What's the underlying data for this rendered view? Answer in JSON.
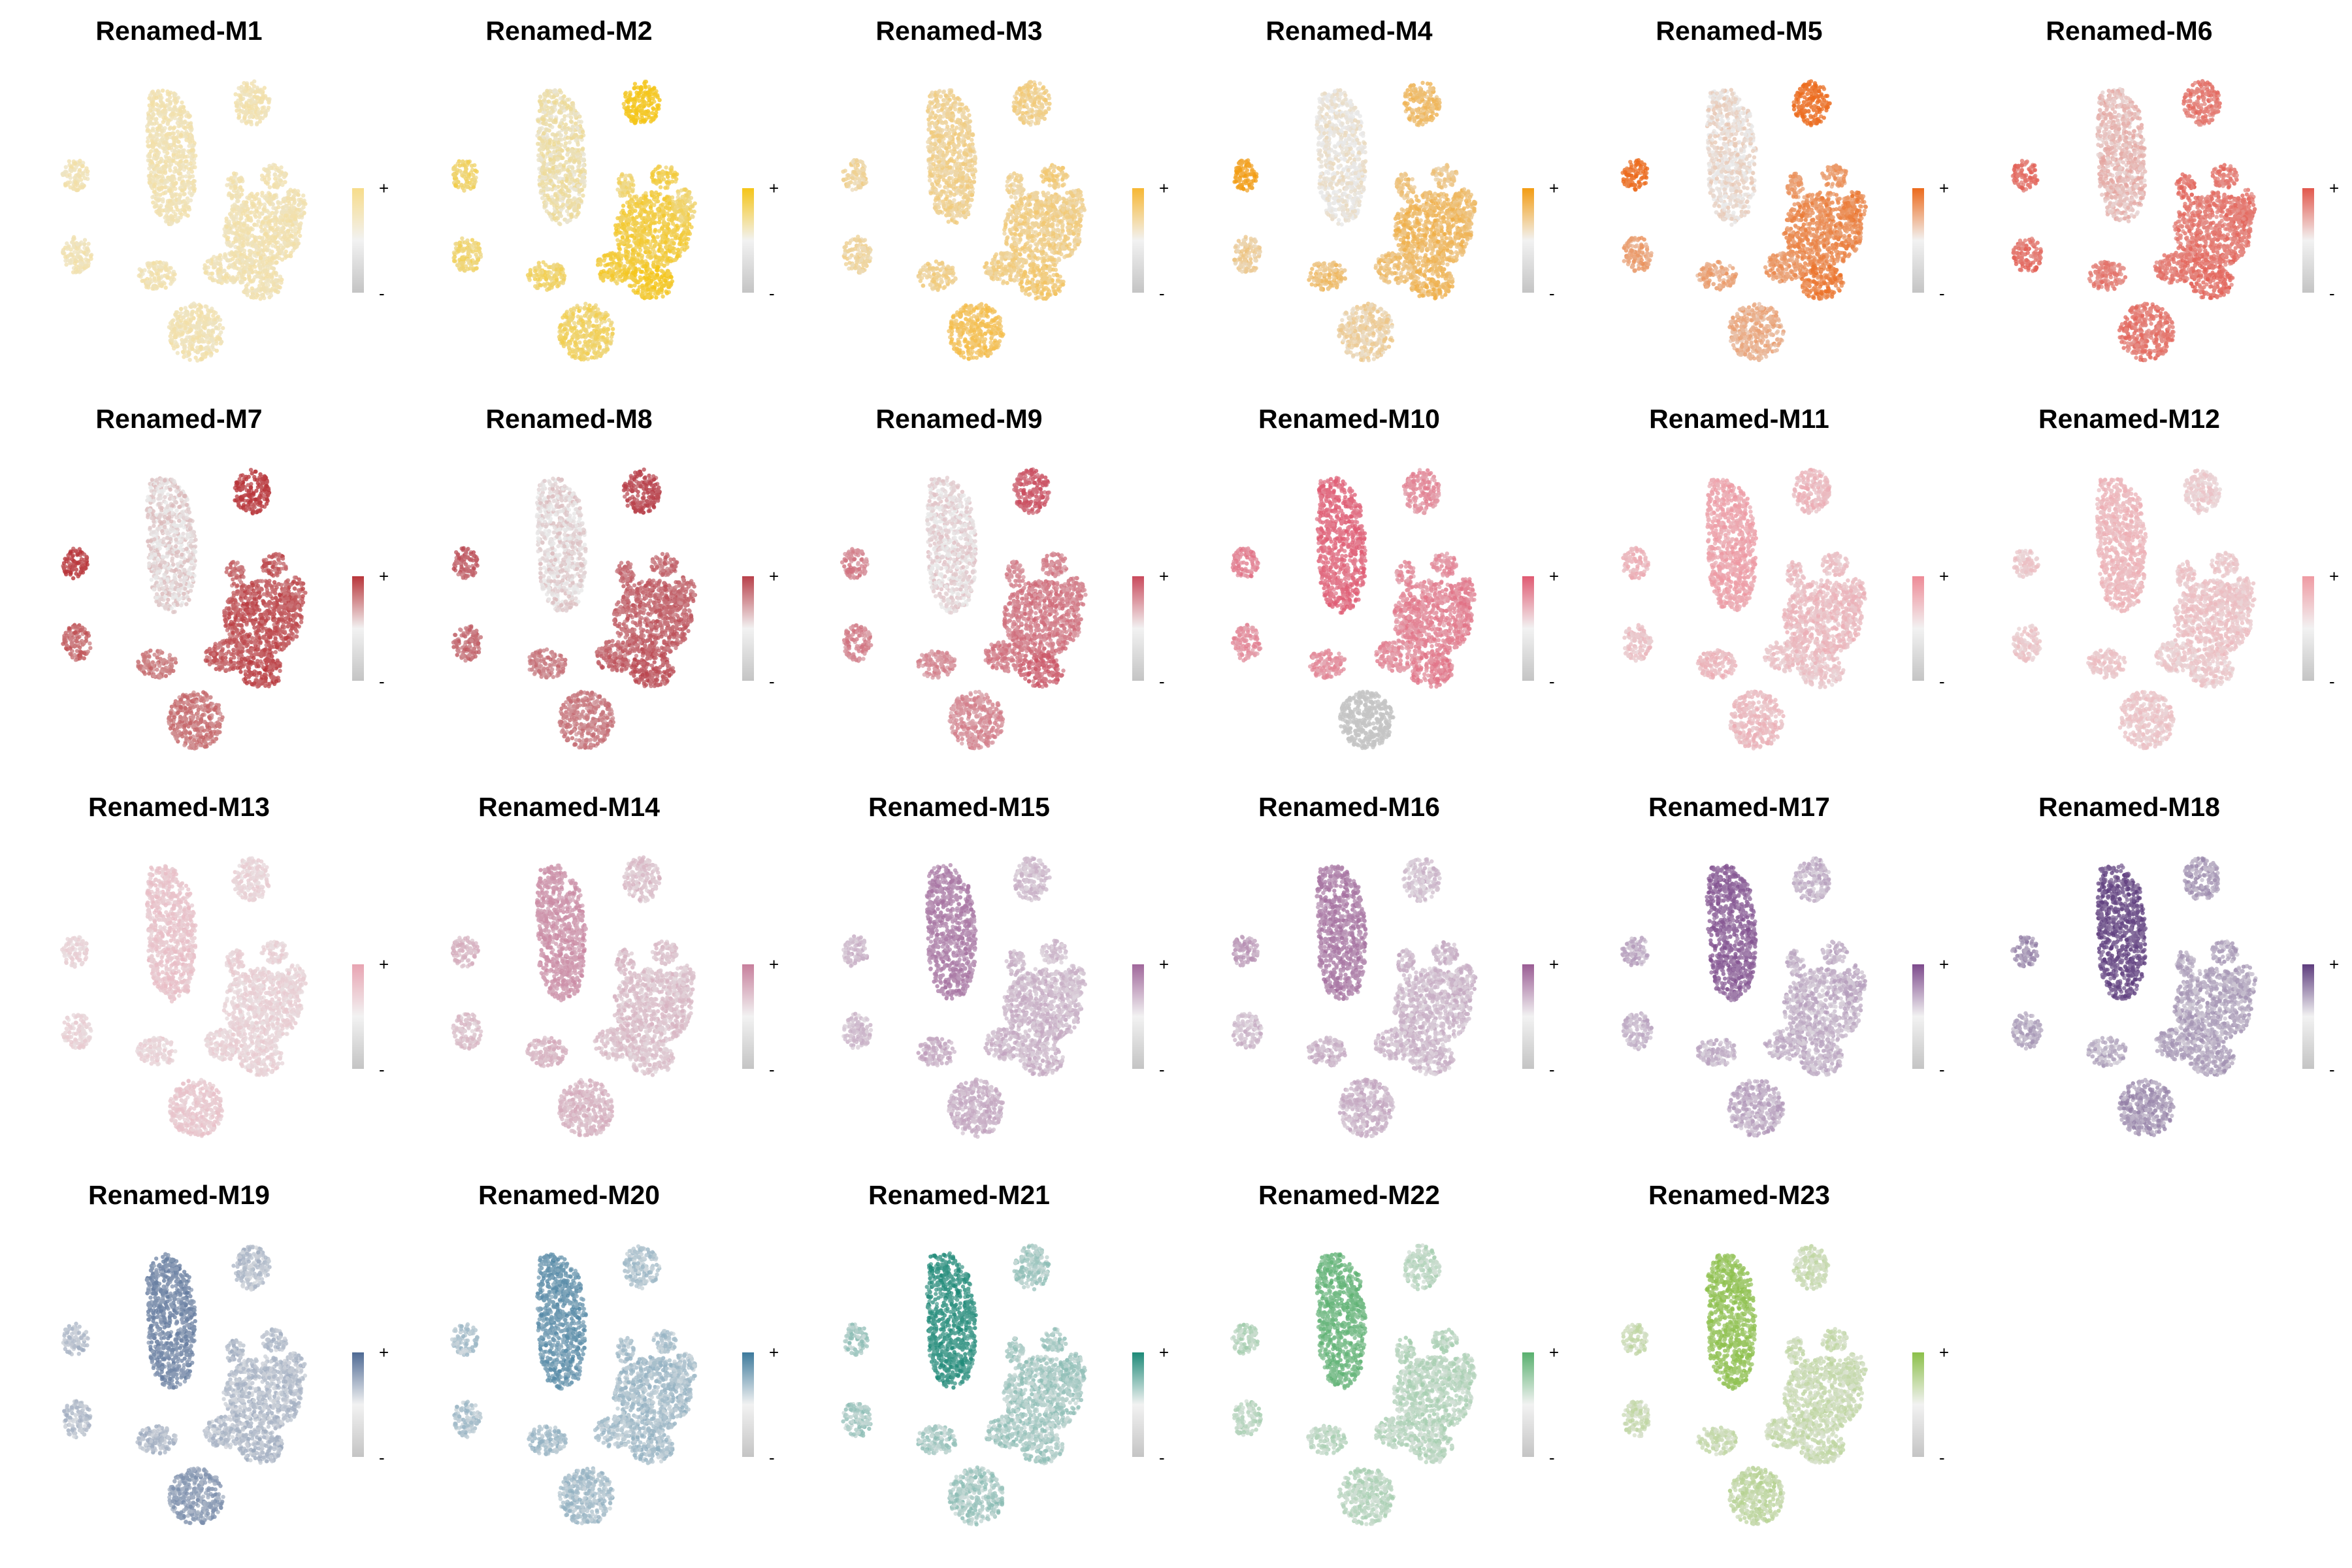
{
  "chart_data": {
    "type": "scatter",
    "description_axis": "",
    "legend_plus": "+",
    "legend_minus": "-",
    "null_color": "#c4c4c4",
    "panels": [
      {
        "title": "Renamed-M1",
        "color": "#f7dc8a",
        "levels": {
          "c1": 0.55,
          "c2": 0.55,
          "c3": 0.55,
          "c4": 0.55,
          "c5": 0.55,
          "c6": 0.55,
          "c7": 0.55,
          "c8": 0.55,
          "c9": 0.55,
          "c10": 0.55,
          "c11": 0.55,
          "c12": 0.55
        }
      },
      {
        "title": "Renamed-M2",
        "color": "#f5c518",
        "levels": {
          "c1": 0.25,
          "c2": 0.6,
          "c3": 0.55,
          "c4": 0.95,
          "c5": 0.55,
          "c6": 0.7,
          "c7": 0.75,
          "c8": 0.55,
          "c9": 0.6,
          "c10": 0.8,
          "c11": 0.9,
          "c12": 0.6
        }
      },
      {
        "title": "Renamed-M3",
        "color": "#f7b733",
        "levels": {
          "c1": 0.45,
          "c2": 0.4,
          "c3": 0.4,
          "c4": 0.5,
          "c5": 0.4,
          "c6": 0.55,
          "c7": 0.5,
          "c8": 0.45,
          "c9": 0.5,
          "c10": 0.5,
          "c11": 0.6,
          "c12": 0.75
        }
      },
      {
        "title": "Renamed-M4",
        "color": "#f39c12",
        "levels": {
          "c1": 0.05,
          "c2": 0.95,
          "c3": 0.35,
          "c4": 0.55,
          "c5": 0.5,
          "c6": 0.4,
          "c7": 0.6,
          "c8": 0.55,
          "c9": 0.5,
          "c10": 0.5,
          "c11": 0.6,
          "c12": 0.3
        }
      },
      {
        "title": "Renamed-M5",
        "color": "#ec6a1c",
        "levels": {
          "c1": 0.1,
          "c2": 0.95,
          "c3": 0.55,
          "c4": 0.95,
          "c5": 0.6,
          "c6": 0.6,
          "c7": 0.7,
          "c8": 0.75,
          "c9": 0.5,
          "c10": 0.6,
          "c11": 0.8,
          "c12": 0.45
        }
      },
      {
        "title": "Renamed-M6",
        "color": "#e2574c",
        "levels": {
          "c1": 0.3,
          "c2": 0.8,
          "c3": 0.8,
          "c4": 0.75,
          "c5": 0.8,
          "c6": 0.75,
          "c7": 0.75,
          "c8": 0.75,
          "c9": 0.7,
          "c10": 0.75,
          "c11": 0.8,
          "c12": 0.75
        }
      },
      {
        "title": "Renamed-M7",
        "color": "#b8353a",
        "levels": {
          "c1": 0.1,
          "c2": 0.95,
          "c3": 0.7,
          "c4": 0.95,
          "c5": 0.7,
          "c6": 0.75,
          "c7": 0.8,
          "c8": 0.75,
          "c9": 0.6,
          "c10": 0.75,
          "c11": 0.85,
          "c12": 0.6
        }
      },
      {
        "title": "Renamed-M8",
        "color": "#b8404a",
        "levels": {
          "c1": 0.1,
          "c2": 0.8,
          "c3": 0.7,
          "c4": 0.9,
          "c5": 0.7,
          "c6": 0.7,
          "c7": 0.75,
          "c8": 0.7,
          "c9": 0.6,
          "c10": 0.75,
          "c11": 0.85,
          "c12": 0.6
        }
      },
      {
        "title": "Renamed-M9",
        "color": "#c94a5c",
        "levels": {
          "c1": 0.1,
          "c2": 0.6,
          "c3": 0.6,
          "c4": 0.85,
          "c5": 0.6,
          "c6": 0.6,
          "c7": 0.65,
          "c8": 0.6,
          "c9": 0.55,
          "c10": 0.65,
          "c11": 0.8,
          "c12": 0.55
        }
      },
      {
        "title": "Renamed-M10",
        "color": "#e05a72",
        "levels": {
          "c1": 0.85,
          "c2": 0.7,
          "c3": 0.6,
          "c4": 0.6,
          "c5": 0.6,
          "c6": 0.6,
          "c7": 0.65,
          "c8": 0.7,
          "c9": 0.6,
          "c10": 0.6,
          "c11": 0.7,
          "c12": 0.0
        }
      },
      {
        "title": "Renamed-M11",
        "color": "#ee8a96",
        "levels": {
          "c1": 0.7,
          "c2": 0.55,
          "c3": 0.4,
          "c4": 0.5,
          "c5": 0.45,
          "c6": 0.4,
          "c7": 0.45,
          "c8": 0.45,
          "c9": 0.5,
          "c10": 0.4,
          "c11": 0.35,
          "c12": 0.45
        }
      },
      {
        "title": "Renamed-M12",
        "color": "#ef9aa2",
        "levels": {
          "c1": 0.6,
          "c2": 0.4,
          "c3": 0.4,
          "c4": 0.35,
          "c5": 0.45,
          "c6": 0.4,
          "c7": 0.45,
          "c8": 0.4,
          "c9": 0.45,
          "c10": 0.35,
          "c11": 0.35,
          "c12": 0.4
        }
      },
      {
        "title": "Renamed-M13",
        "color": "#e8a4b2",
        "levels": {
          "c1": 0.5,
          "c2": 0.3,
          "c3": 0.3,
          "c4": 0.3,
          "c5": 0.35,
          "c6": 0.3,
          "c7": 0.3,
          "c8": 0.3,
          "c9": 0.3,
          "c10": 0.3,
          "c11": 0.3,
          "c12": 0.45
        }
      },
      {
        "title": "Renamed-M14",
        "color": "#c77f9c",
        "levels": {
          "c1": 0.75,
          "c2": 0.45,
          "c3": 0.35,
          "c4": 0.35,
          "c5": 0.4,
          "c6": 0.35,
          "c7": 0.35,
          "c8": 0.3,
          "c9": 0.45,
          "c10": 0.35,
          "c11": 0.3,
          "c12": 0.45
        }
      },
      {
        "title": "Renamed-M15",
        "color": "#a0679b",
        "levels": {
          "c1": 0.75,
          "c2": 0.35,
          "c3": 0.3,
          "c4": 0.3,
          "c5": 0.35,
          "c6": 0.3,
          "c7": 0.35,
          "c8": 0.3,
          "c9": 0.4,
          "c10": 0.35,
          "c11": 0.35,
          "c12": 0.4
        }
      },
      {
        "title": "Renamed-M16",
        "color": "#9a5c94",
        "levels": {
          "c1": 0.7,
          "c2": 0.5,
          "c3": 0.3,
          "c4": 0.25,
          "c5": 0.35,
          "c6": 0.3,
          "c7": 0.3,
          "c8": 0.3,
          "c9": 0.35,
          "c10": 0.3,
          "c11": 0.3,
          "c12": 0.35
        }
      },
      {
        "title": "Renamed-M17",
        "color": "#7d4a8c",
        "levels": {
          "c1": 0.8,
          "c2": 0.35,
          "c3": 0.3,
          "c4": 0.3,
          "c5": 0.3,
          "c6": 0.3,
          "c7": 0.3,
          "c8": 0.35,
          "c9": 0.3,
          "c10": 0.3,
          "c11": 0.3,
          "c12": 0.35
        }
      },
      {
        "title": "Renamed-M18",
        "color": "#5e3d7e",
        "levels": {
          "c1": 0.85,
          "c2": 0.5,
          "c3": 0.35,
          "c4": 0.4,
          "c5": 0.35,
          "c6": 0.35,
          "c7": 0.35,
          "c8": 0.35,
          "c9": 0.3,
          "c10": 0.35,
          "c11": 0.35,
          "c12": 0.45
        }
      },
      {
        "title": "Renamed-M19",
        "color": "#4f6a94",
        "levels": {
          "c1": 0.7,
          "c2": 0.3,
          "c3": 0.3,
          "c4": 0.3,
          "c5": 0.35,
          "c6": 0.3,
          "c7": 0.3,
          "c8": 0.3,
          "c9": 0.35,
          "c10": 0.3,
          "c11": 0.35,
          "c12": 0.55
        }
      },
      {
        "title": "Renamed-M20",
        "color": "#3d7a9c",
        "levels": {
          "c1": 0.7,
          "c2": 0.3,
          "c3": 0.3,
          "c4": 0.3,
          "c5": 0.35,
          "c6": 0.3,
          "c7": 0.35,
          "c8": 0.3,
          "c9": 0.35,
          "c10": 0.3,
          "c11": 0.35,
          "c12": 0.35
        }
      },
      {
        "title": "Renamed-M21",
        "color": "#1e8a78",
        "levels": {
          "c1": 0.85,
          "c2": 0.3,
          "c3": 0.3,
          "c4": 0.3,
          "c5": 0.3,
          "c6": 0.3,
          "c7": 0.3,
          "c8": 0.3,
          "c9": 0.3,
          "c10": 0.3,
          "c11": 0.3,
          "c12": 0.3
        }
      },
      {
        "title": "Renamed-M22",
        "color": "#58b06e",
        "levels": {
          "c1": 0.8,
          "c2": 0.35,
          "c3": 0.3,
          "c4": 0.3,
          "c5": 0.35,
          "c6": 0.3,
          "c7": 0.3,
          "c8": 0.3,
          "c9": 0.3,
          "c10": 0.3,
          "c11": 0.3,
          "c12": 0.3
        }
      },
      {
        "title": "Renamed-M23",
        "color": "#8cc04a",
        "levels": {
          "c1": 0.85,
          "c2": 0.3,
          "c3": 0.3,
          "c4": 0.3,
          "c5": 0.3,
          "c6": 0.3,
          "c7": 0.3,
          "c8": 0.3,
          "c9": 0.3,
          "c10": 0.3,
          "c11": 0.3,
          "c12": 0.4
        }
      }
    ]
  }
}
